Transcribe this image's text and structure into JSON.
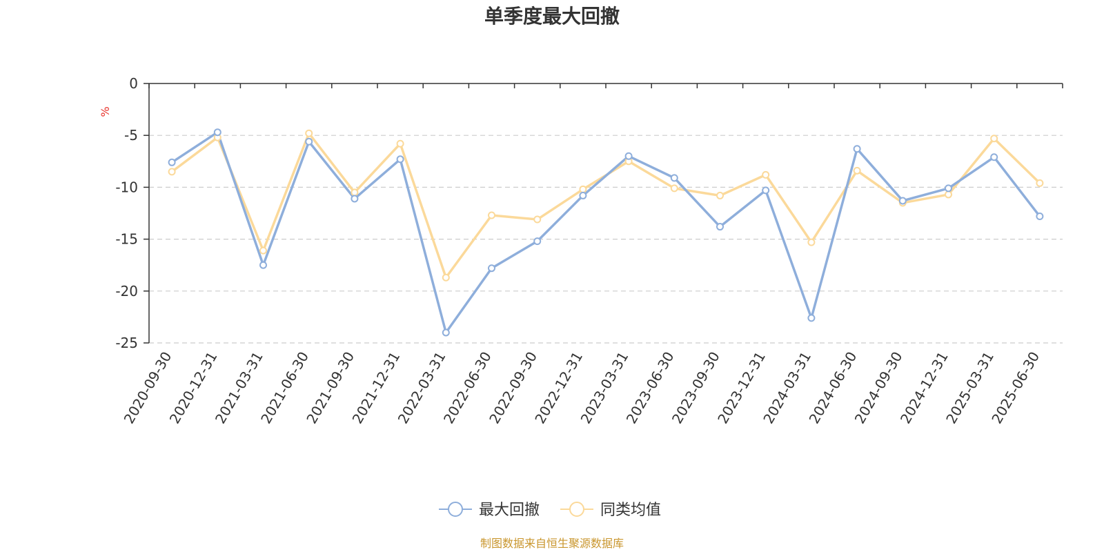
{
  "chart_data": {
    "type": "line",
    "title": "单季度最大回撤",
    "ylabel": "%",
    "xlabel": "",
    "ylim": [
      -25,
      0
    ],
    "yticks": [
      0,
      -5,
      -10,
      -15,
      -20,
      -25
    ],
    "grid": true,
    "legend_position": "bottom",
    "categories": [
      "2020-09-30",
      "2020-12-31",
      "2021-03-31",
      "2021-06-30",
      "2021-09-30",
      "2021-12-31",
      "2022-03-31",
      "2022-06-30",
      "2022-09-30",
      "2022-12-31",
      "2023-03-31",
      "2023-06-30",
      "2023-09-30",
      "2023-12-31",
      "2024-03-31",
      "2024-06-30",
      "2024-09-30",
      "2024-12-31",
      "2025-03-31",
      "2025-06-30"
    ],
    "series": [
      {
        "name": "最大回撤",
        "color": "#8eaedb",
        "values": [
          -7.6,
          -4.7,
          -17.5,
          -5.6,
          -11.1,
          -7.3,
          -24.0,
          -17.8,
          -15.2,
          -10.8,
          -7.0,
          -9.1,
          -13.8,
          -10.3,
          -22.6,
          -6.3,
          -11.3,
          -10.1,
          -7.1,
          -12.8
        ]
      },
      {
        "name": "同类均值",
        "color": "#fbd99a",
        "values": [
          -8.5,
          -5.2,
          -16.1,
          -4.8,
          -10.5,
          -5.8,
          -18.7,
          -12.7,
          -13.1,
          -10.2,
          -7.5,
          -10.1,
          -10.8,
          -8.8,
          -15.3,
          -8.4,
          -11.5,
          -10.7,
          -5.3,
          -9.6
        ]
      }
    ],
    "source": "制图数据来自恒生聚源数据库"
  }
}
